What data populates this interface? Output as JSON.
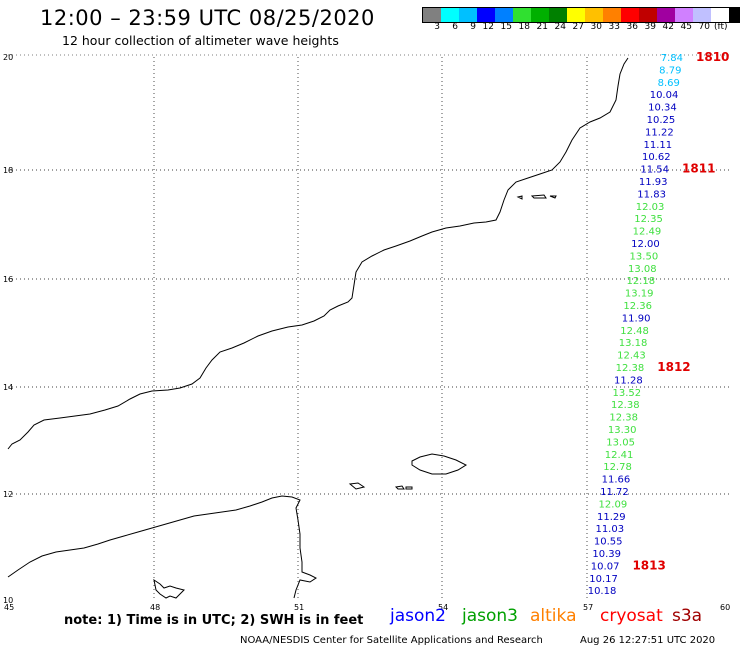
{
  "header": {
    "title": "12:00 – 23:59 UTC 08/25/2020",
    "subtitle": "12 hour collection of altimeter wave heights"
  },
  "legend": {
    "colors": [
      "#808080",
      "#00ffff",
      "#00c0ff",
      "#0000ff",
      "#0080ff",
      "#30e030",
      "#00b000",
      "#008000",
      "#ffff00",
      "#ffc000",
      "#ff8000",
      "#ff0000",
      "#c00000",
      "#a000a0",
      "#d080ff",
      "#c0c0ff",
      "#ffffff",
      "#000000"
    ],
    "labels": [
      "3",
      "6",
      "9",
      "12",
      "15",
      "18",
      "21",
      "24",
      "27",
      "30",
      "33",
      "36",
      "39",
      "42",
      "45",
      "70"
    ],
    "unit": "(ft)"
  },
  "axes": {
    "x_ticks": [
      "45",
      "48",
      "51",
      "54",
      "57",
      "60"
    ],
    "y_ticks": [
      "20",
      "18",
      "16",
      "14",
      "12",
      "10"
    ]
  },
  "readings": [
    {
      "value": "7.84",
      "color": "#00c0ff"
    },
    {
      "value": "8.79",
      "color": "#00c0ff"
    },
    {
      "value": "8.69",
      "color": "#00c0ff"
    },
    {
      "value": "10.04",
      "color": "#0000c0"
    },
    {
      "value": "10.34",
      "color": "#0000c0"
    },
    {
      "value": "10.25",
      "color": "#0000c0"
    },
    {
      "value": "11.22",
      "color": "#0000c0"
    },
    {
      "value": "11.11",
      "color": "#0000c0"
    },
    {
      "value": "10.62",
      "color": "#0000c0"
    },
    {
      "value": "11.54",
      "color": "#0000c0"
    },
    {
      "value": "11.93",
      "color": "#0000c0"
    },
    {
      "value": "11.83",
      "color": "#0000c0"
    },
    {
      "value": "12.03",
      "color": "#40e040"
    },
    {
      "value": "12.35",
      "color": "#40e040"
    },
    {
      "value": "12.49",
      "color": "#40e040"
    },
    {
      "value": "12.00",
      "color": "#0000c0"
    },
    {
      "value": "13.50",
      "color": "#40e040"
    },
    {
      "value": "13.08",
      "color": "#40e040"
    },
    {
      "value": "12.18",
      "color": "#40e040"
    },
    {
      "value": "13.19",
      "color": "#40e040"
    },
    {
      "value": "12.36",
      "color": "#40e040"
    },
    {
      "value": "11.90",
      "color": "#0000c0"
    },
    {
      "value": "12.48",
      "color": "#40e040"
    },
    {
      "value": "13.18",
      "color": "#40e040"
    },
    {
      "value": "12.43",
      "color": "#40e040"
    },
    {
      "value": "12.38",
      "color": "#40e040"
    },
    {
      "value": "11.28",
      "color": "#0000c0"
    },
    {
      "value": "13.52",
      "color": "#40e040"
    },
    {
      "value": "12.38",
      "color": "#40e040"
    },
    {
      "value": "12.38",
      "color": "#40e040"
    },
    {
      "value": "13.30",
      "color": "#40e040"
    },
    {
      "value": "13.05",
      "color": "#40e040"
    },
    {
      "value": "12.41",
      "color": "#40e040"
    },
    {
      "value": "12.78",
      "color": "#40e040"
    },
    {
      "value": "11.66",
      "color": "#0000c0"
    },
    {
      "value": "11.72",
      "color": "#0000c0"
    },
    {
      "value": "12.09",
      "color": "#40e040"
    },
    {
      "value": "11.29",
      "color": "#0000c0"
    },
    {
      "value": "11.03",
      "color": "#0000c0"
    },
    {
      "value": "10.55",
      "color": "#0000c0"
    },
    {
      "value": "10.39",
      "color": "#0000c0"
    },
    {
      "value": "10.07",
      "color": "#0000c0"
    },
    {
      "value": "10.17",
      "color": "#0000c0"
    },
    {
      "value": "10.18",
      "color": "#0000c0"
    }
  ],
  "times": [
    {
      "label": "1810",
      "row": 0
    },
    {
      "label": "1811",
      "row": 9
    },
    {
      "label": "1812",
      "row": 25
    },
    {
      "label": "1813",
      "row": 41
    }
  ],
  "time_color": "#e00000",
  "footer": {
    "note": "note: 1) Time is in UTC; 2) SWH is in feet",
    "satellites": [
      {
        "name": "jason2",
        "color": "#0000ff"
      },
      {
        "name": "jason3",
        "color": "#00a000"
      },
      {
        "name": "altika",
        "color": "#ff8000"
      },
      {
        "name": "cryosat",
        "color": "#ff0000"
      },
      {
        "name": "s3a",
        "color": "#a00000"
      }
    ],
    "credit": "NOAA/NESDIS Center for Satellite Applications and Research",
    "stamp": "Aug 26 12:27:51 UTC 2020"
  }
}
